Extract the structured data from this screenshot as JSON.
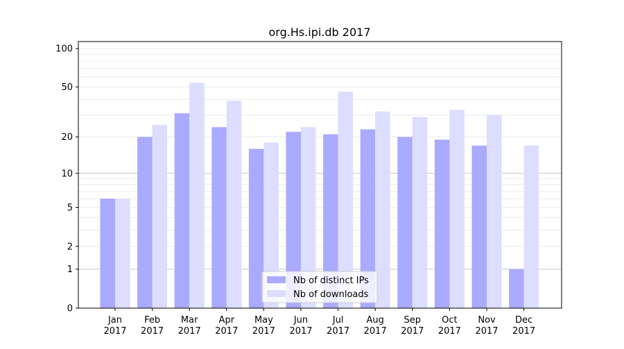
{
  "chart_data": {
    "type": "bar",
    "title": "org.Hs.ipi.db 2017",
    "xlabel": "",
    "ylabel": "",
    "yscale": "log(1+y)",
    "ylim": [
      0,
      120
    ],
    "yticks": [
      0,
      1,
      2,
      5,
      10,
      20,
      50,
      100
    ],
    "grid": true,
    "legend_placement": "bottom-center",
    "categories": [
      "Jan\n2017",
      "Feb\n2017",
      "Mar\n2017",
      "Apr\n2017",
      "May\n2017",
      "Jun\n2017",
      "Jul\n2017",
      "Aug\n2017",
      "Sep\n2017",
      "Oct\n2017",
      "Nov\n2017",
      "Dec\n2017"
    ],
    "series": [
      {
        "name": "Nb of distinct IPs",
        "color": "#aaaaff",
        "values": [
          6,
          20,
          31,
          24,
          16,
          22,
          21,
          23,
          20,
          19,
          17,
          1
        ]
      },
      {
        "name": "Nb of downloads",
        "color": "#ddddff",
        "values": [
          6,
          25,
          54,
          39,
          18,
          24,
          46,
          32,
          29,
          33,
          30,
          17
        ]
      }
    ]
  }
}
